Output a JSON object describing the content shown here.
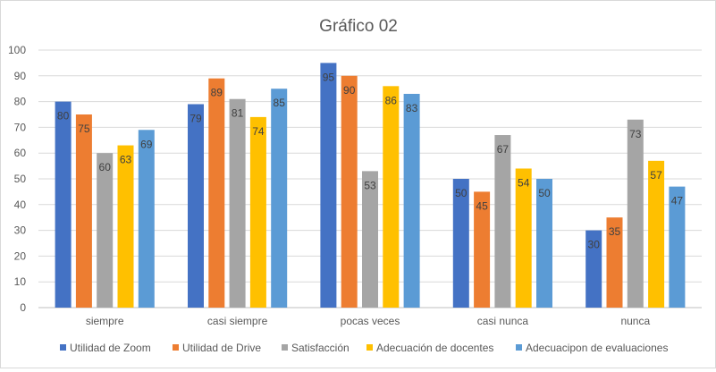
{
  "chart_data": {
    "type": "bar",
    "title": "Gráfico 02",
    "xlabel": "",
    "ylabel": "",
    "ylim": [
      0,
      100
    ],
    "yticks": [
      0,
      10,
      20,
      30,
      40,
      50,
      60,
      70,
      80,
      90,
      100
    ],
    "grid": true,
    "legend_position": "bottom",
    "categories": [
      "siempre",
      "casi siempre",
      "pocas veces",
      "casi nunca",
      "nunca"
    ],
    "series": [
      {
        "name": "Utilidad de Zoom",
        "color": "#4472c4",
        "values": [
          80,
          79,
          95,
          50,
          30
        ],
        "labels": [
          "80",
          "79",
          "95",
          "50",
          "30"
        ]
      },
      {
        "name": "Utilidad de Drive",
        "color": "#ed7d31",
        "values": [
          75,
          89,
          90,
          45,
          35
        ],
        "labels": [
          "75",
          "89",
          "90",
          "45",
          "35"
        ]
      },
      {
        "name": "Satisfacción",
        "color": "#a5a5a5",
        "values": [
          60,
          81,
          53,
          67,
          73
        ],
        "labels": [
          "60",
          "81",
          "53",
          "67",
          "73"
        ]
      },
      {
        "name": "Adecuación de docentes",
        "color": "#ffc000",
        "values": [
          63,
          74,
          86,
          54,
          57
        ],
        "labels": [
          "63",
          "74",
          "86",
          "54",
          "57"
        ]
      },
      {
        "name": "Adecuacipon de evaluaciones",
        "color": "#5b9bd5",
        "values": [
          69,
          85,
          83,
          50,
          47
        ],
        "labels": [
          "69",
          "85",
          "83",
          "50",
          "47"
        ]
      }
    ]
  }
}
